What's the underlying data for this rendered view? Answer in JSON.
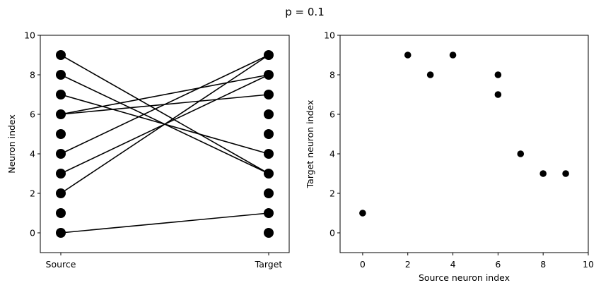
{
  "title": "p = 0.1",
  "chart_data": [
    {
      "type": "line",
      "panel": "left",
      "xlabel": "",
      "ylabel": "Neuron index",
      "x_categories": [
        "Source",
        "Target"
      ],
      "ylim": [
        -1,
        10
      ],
      "yticks": [
        0,
        2,
        4,
        6,
        8,
        10
      ],
      "source_nodes": [
        0,
        1,
        2,
        3,
        4,
        5,
        6,
        7,
        8,
        9
      ],
      "target_nodes": [
        0,
        1,
        2,
        3,
        4,
        5,
        6,
        7,
        8,
        9
      ],
      "connections": [
        {
          "source": 0,
          "target": 1
        },
        {
          "source": 2,
          "target": 9
        },
        {
          "source": 3,
          "target": 8
        },
        {
          "source": 4,
          "target": 9
        },
        {
          "source": 6,
          "target": 8
        },
        {
          "source": 6,
          "target": 7
        },
        {
          "source": 7,
          "target": 4
        },
        {
          "source": 8,
          "target": 3
        },
        {
          "source": 9,
          "target": 3
        }
      ]
    },
    {
      "type": "scatter",
      "panel": "right",
      "xlabel": "Source neuron index",
      "ylabel": "Target neuron index",
      "xlim": [
        -1,
        10
      ],
      "ylim": [
        -1,
        10
      ],
      "xticks": [
        0,
        2,
        4,
        6,
        8,
        10
      ],
      "yticks": [
        0,
        2,
        4,
        6,
        8,
        10
      ],
      "points": [
        {
          "x": 0,
          "y": 1
        },
        {
          "x": 2,
          "y": 9
        },
        {
          "x": 3,
          "y": 8
        },
        {
          "x": 4,
          "y": 9
        },
        {
          "x": 6,
          "y": 8
        },
        {
          "x": 6,
          "y": 7
        },
        {
          "x": 7,
          "y": 4
        },
        {
          "x": 8,
          "y": 3
        },
        {
          "x": 9,
          "y": 3
        }
      ]
    }
  ]
}
